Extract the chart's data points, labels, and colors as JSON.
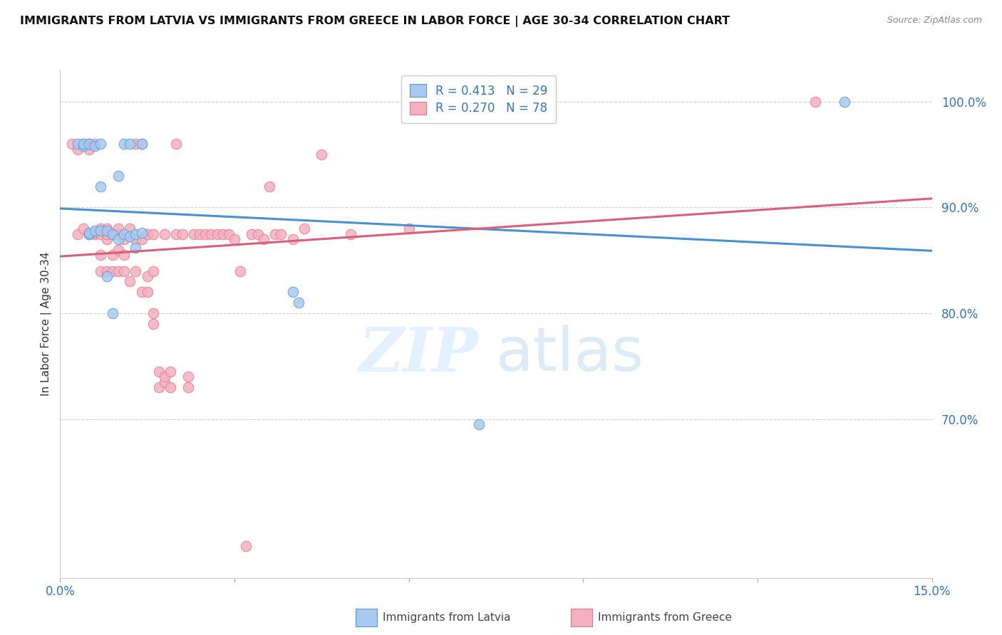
{
  "title": "IMMIGRANTS FROM LATVIA VS IMMIGRANTS FROM GREECE IN LABOR FORCE | AGE 30-34 CORRELATION CHART",
  "source": "Source: ZipAtlas.com",
  "ylabel": "In Labor Force | Age 30-34",
  "xlim": [
    0.0,
    0.15
  ],
  "ylim": [
    0.55,
    1.03
  ],
  "xticks": [
    0.0,
    0.03,
    0.06,
    0.09,
    0.12,
    0.15
  ],
  "yticks": [
    0.7,
    0.8,
    0.9,
    1.0
  ],
  "yticklabels": [
    "70.0%",
    "80.0%",
    "90.0%",
    "100.0%"
  ],
  "background_color": "#ffffff",
  "grid_color": "#cccccc",
  "latvia_fill": "#a8c8f0",
  "latvia_edge": "#5599d0",
  "greece_fill": "#f5b0c0",
  "greece_edge": "#e07888",
  "trend_latvia": "#4a90d0",
  "trend_greece": "#d95f7a",
  "latvia_R": "0.413",
  "latvia_N": "29",
  "greece_R": "0.270",
  "greece_N": "78",
  "bottom_legend_latvia": "Immigrants from Latvia",
  "bottom_legend_greece": "Immigrants from Greece",
  "latvia_x": [
    0.003,
    0.004,
    0.004,
    0.005,
    0.005,
    0.005,
    0.006,
    0.006,
    0.007,
    0.007,
    0.007,
    0.008,
    0.008,
    0.009,
    0.009,
    0.01,
    0.01,
    0.011,
    0.011,
    0.012,
    0.012,
    0.013,
    0.013,
    0.014,
    0.014,
    0.04,
    0.041,
    0.072,
    0.135
  ],
  "latvia_y": [
    0.96,
    0.958,
    0.96,
    0.875,
    0.876,
    0.96,
    0.878,
    0.958,
    0.878,
    0.92,
    0.96,
    0.878,
    0.835,
    0.8,
    0.875,
    0.87,
    0.93,
    0.875,
    0.96,
    0.873,
    0.96,
    0.862,
    0.875,
    0.876,
    0.96,
    0.82,
    0.81,
    0.695,
    1.0
  ],
  "greece_x": [
    0.002,
    0.003,
    0.003,
    0.004,
    0.004,
    0.005,
    0.005,
    0.005,
    0.006,
    0.006,
    0.006,
    0.007,
    0.007,
    0.007,
    0.007,
    0.008,
    0.008,
    0.008,
    0.008,
    0.009,
    0.009,
    0.009,
    0.01,
    0.01,
    0.01,
    0.01,
    0.011,
    0.011,
    0.011,
    0.012,
    0.012,
    0.013,
    0.013,
    0.013,
    0.014,
    0.014,
    0.014,
    0.015,
    0.015,
    0.015,
    0.016,
    0.016,
    0.016,
    0.016,
    0.017,
    0.017,
    0.018,
    0.018,
    0.018,
    0.019,
    0.019,
    0.02,
    0.02,
    0.021,
    0.022,
    0.022,
    0.023,
    0.024,
    0.025,
    0.026,
    0.027,
    0.028,
    0.029,
    0.03,
    0.031,
    0.032,
    0.033,
    0.034,
    0.035,
    0.036,
    0.037,
    0.038,
    0.04,
    0.042,
    0.045,
    0.05,
    0.06,
    0.13
  ],
  "greece_y": [
    0.96,
    0.955,
    0.875,
    0.96,
    0.88,
    0.955,
    0.875,
    0.96,
    0.875,
    0.876,
    0.96,
    0.84,
    0.855,
    0.875,
    0.88,
    0.84,
    0.87,
    0.875,
    0.88,
    0.84,
    0.855,
    0.875,
    0.84,
    0.86,
    0.875,
    0.88,
    0.84,
    0.855,
    0.87,
    0.83,
    0.88,
    0.84,
    0.87,
    0.96,
    0.82,
    0.87,
    0.96,
    0.82,
    0.835,
    0.875,
    0.79,
    0.8,
    0.84,
    0.875,
    0.73,
    0.745,
    0.735,
    0.74,
    0.875,
    0.73,
    0.745,
    0.875,
    0.96,
    0.875,
    0.73,
    0.74,
    0.875,
    0.875,
    0.875,
    0.875,
    0.875,
    0.875,
    0.875,
    0.87,
    0.84,
    0.58,
    0.875,
    0.875,
    0.87,
    0.92,
    0.875,
    0.875,
    0.87,
    0.88,
    0.95,
    0.875,
    0.88,
    1.0
  ]
}
